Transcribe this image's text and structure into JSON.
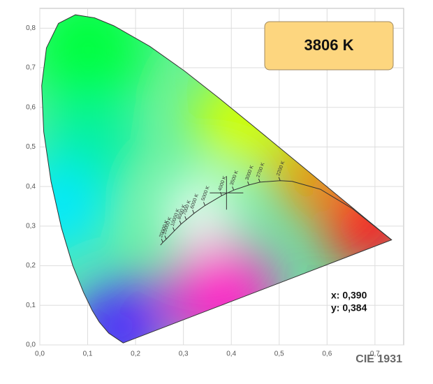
{
  "chart_data": {
    "type": "chromaticity",
    "xlim": [
      0,
      0.76
    ],
    "ylim": [
      0,
      0.85
    ],
    "xticks": [
      {
        "value": 0,
        "label": "0,0"
      },
      {
        "value": 0.1,
        "label": "0,1"
      },
      {
        "value": 0.2,
        "label": "0,2"
      },
      {
        "value": 0.3,
        "label": "0,3"
      },
      {
        "value": 0.4,
        "label": "0,4"
      },
      {
        "value": 0.5,
        "label": "0,5"
      },
      {
        "value": 0.6,
        "label": "0,6"
      },
      {
        "value": 0.7,
        "label": "0,7"
      }
    ],
    "yticks": [
      {
        "value": 0,
        "label": "0,0"
      },
      {
        "value": 0.1,
        "label": "0,1"
      },
      {
        "value": 0.2,
        "label": "0,2"
      },
      {
        "value": 0.3,
        "label": "0,3"
      },
      {
        "value": 0.4,
        "label": "0,4"
      },
      {
        "value": 0.5,
        "label": "0,5"
      },
      {
        "value": 0.6,
        "label": "0,6"
      },
      {
        "value": 0.7,
        "label": "0,7"
      },
      {
        "value": 0.8,
        "label": "0,8"
      }
    ],
    "grid": true,
    "spectral_locus": {
      "x": [
        0.1741,
        0.144,
        0.1241,
        0.1096,
        0.0913,
        0.0687,
        0.0454,
        0.0235,
        0.0082,
        0.0039,
        0.0139,
        0.0389,
        0.0743,
        0.1142,
        0.1547,
        0.2296,
        0.3016,
        0.3731,
        0.4441,
        0.5125,
        0.5752,
        0.627,
        0.6915,
        0.7347
      ],
      "y": [
        0.005,
        0.0297,
        0.0578,
        0.0868,
        0.1327,
        0.2007,
        0.295,
        0.4127,
        0.5384,
        0.6548,
        0.7502,
        0.812,
        0.8338,
        0.8262,
        0.8059,
        0.7543,
        0.6923,
        0.6245,
        0.5547,
        0.4866,
        0.4242,
        0.3725,
        0.3083,
        0.2653
      ]
    },
    "planckian_locus": {
      "x": [
        0.735,
        0.652,
        0.586,
        0.527,
        0.502,
        0.46,
        0.437,
        0.405,
        0.38,
        0.345,
        0.322,
        0.306,
        0.295,
        0.281,
        0.264,
        0.257,
        0.252
      ],
      "y": [
        0.265,
        0.345,
        0.393,
        0.413,
        0.415,
        0.411,
        0.404,
        0.391,
        0.377,
        0.352,
        0.332,
        0.316,
        0.305,
        0.288,
        0.267,
        0.259,
        0.252
      ],
      "labels": [
        null,
        null,
        null,
        null,
        "2200 K",
        "2700 K",
        "3000 K",
        "3500 K",
        "4000 K",
        "5000 K",
        "6000 K",
        "7000 K",
        "8000 K",
        "10000 K",
        "15000 K",
        "20000 K",
        null
      ]
    },
    "point": {
      "x": 0.39,
      "y": 0.384
    },
    "readout": {
      "cct": "3806 K",
      "x_text": "x: 0,390",
      "y_text": "y: 0,384"
    },
    "caption": "CIE 1931"
  }
}
